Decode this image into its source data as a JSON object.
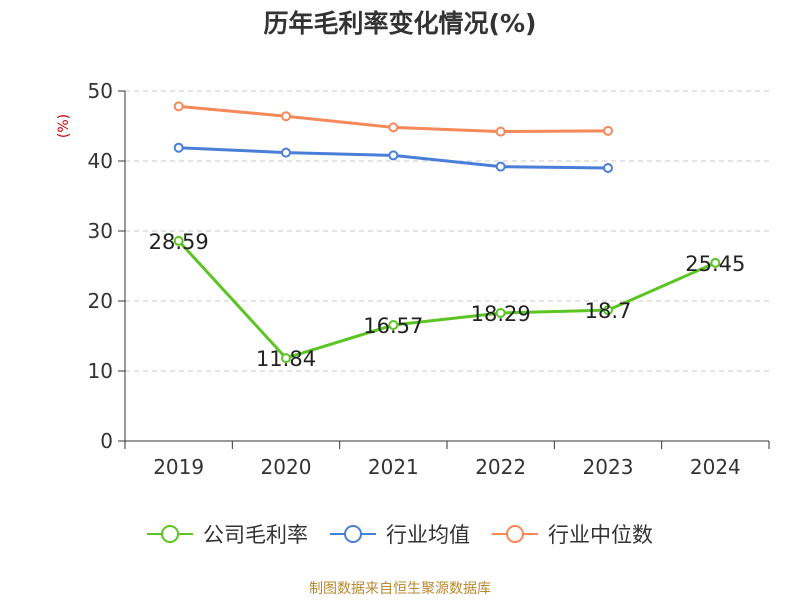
{
  "chart_data": {
    "type": "line",
    "title": "历年毛利率变化情况(%)",
    "ylabel": "(%)",
    "categories": [
      "2019",
      "2020",
      "2021",
      "2022",
      "2023",
      "2024"
    ],
    "ylim": [
      0,
      50
    ],
    "yticks": [
      0,
      10,
      20,
      30,
      40,
      50
    ],
    "grid": true,
    "legend_position": "bottom",
    "series": [
      {
        "name": "公司毛利率",
        "color": "#5cc424",
        "values": [
          28.59,
          11.84,
          16.57,
          18.29,
          18.7,
          25.45
        ],
        "labels": [
          "28.59",
          "11.84",
          "16.57",
          "18.29",
          "18.7",
          "25.45"
        ]
      },
      {
        "name": "行业均值",
        "color": "#4a7fd9",
        "values": [
          41.9,
          41.2,
          40.8,
          39.2,
          39.0,
          null
        ]
      },
      {
        "name": "行业中位数",
        "color": "#f5895a",
        "values": [
          47.8,
          46.4,
          44.8,
          44.2,
          44.3,
          null
        ]
      }
    ]
  },
  "footer": {
    "source": "制图数据来自恒生聚源数据库"
  }
}
